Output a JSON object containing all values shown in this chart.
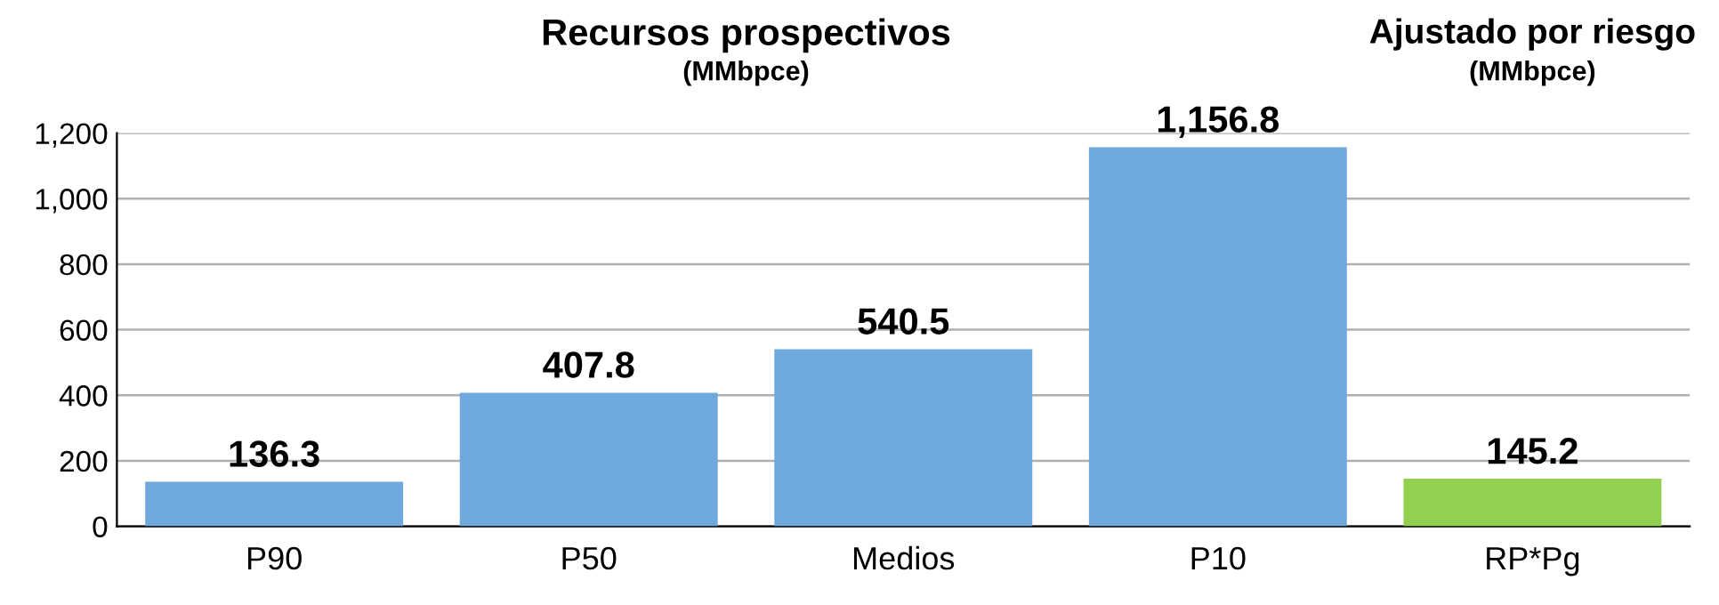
{
  "chart_data": {
    "type": "bar",
    "title": "Recursos prospectivos",
    "subtitle": "(MMbpce)",
    "annotations": [
      "Ajustado por riesgo",
      "(MMbpce)"
    ],
    "categories": [
      "P90",
      "P50",
      "Medios",
      "P10",
      "RP*Pg"
    ],
    "values": [
      136.3,
      407.8,
      540.5,
      1156.8,
      145.2
    ],
    "value_labels": [
      "136.3",
      "407.8",
      "540.5",
      "1,156.8",
      "145.2"
    ],
    "colors": [
      "#6fa8dc",
      "#6fa8dc",
      "#6fa8dc",
      "#6fa8dc",
      "#92d050"
    ],
    "ylim": [
      0,
      1200
    ],
    "yticks": [
      {
        "value": 0,
        "label": "0"
      },
      {
        "value": 200,
        "label": "200"
      },
      {
        "value": 400,
        "label": "400"
      },
      {
        "value": 600,
        "label": "600"
      },
      {
        "value": 800,
        "label": "800"
      },
      {
        "value": 1000,
        "label": "1,000"
      },
      {
        "value": 1200,
        "label": "1,200"
      }
    ],
    "grid": "y",
    "legend": false
  }
}
